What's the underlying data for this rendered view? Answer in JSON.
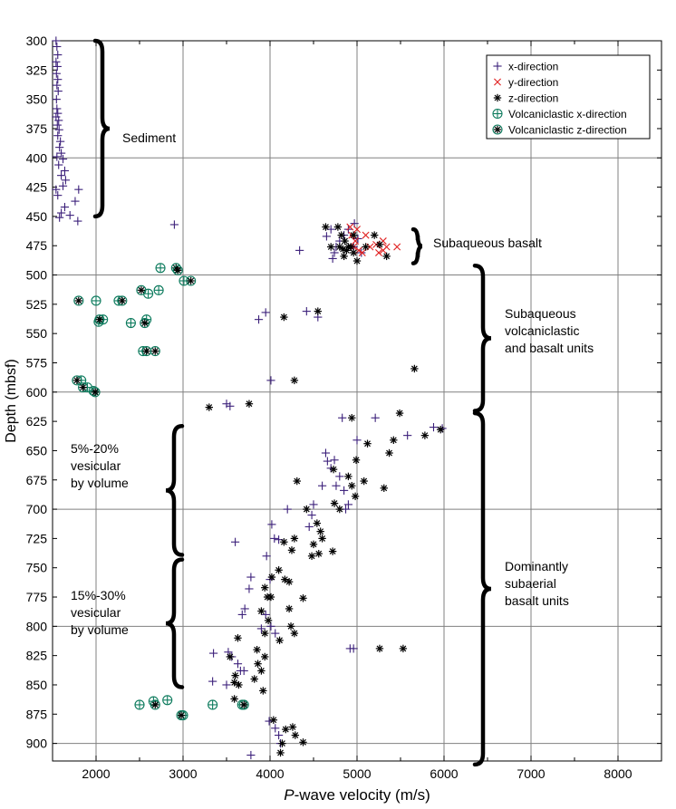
{
  "chart_data": {
    "type": "scatter",
    "xlabel_italic": "P",
    "xlabel_rest": "-wave velocity (m/s)",
    "ylabel": "Depth (mbsf)",
    "xlim": [
      1500,
      8500
    ],
    "ylim": [
      915,
      300
    ],
    "y_inverted": true,
    "grid": true,
    "legend_position": "top-right",
    "xticks": [
      2000,
      3000,
      4000,
      5000,
      6000,
      7000,
      8000
    ],
    "yticks": [
      300,
      325,
      350,
      375,
      400,
      425,
      450,
      475,
      500,
      525,
      550,
      575,
      600,
      625,
      650,
      675,
      700,
      725,
      750,
      775,
      800,
      825,
      850,
      875,
      900
    ],
    "series": [
      {
        "name": "x-direction",
        "marker": "plus",
        "color": "#3b1f7a",
        "points": [
          [
            1540,
            300
          ],
          [
            1550,
            305
          ],
          [
            1560,
            312
          ],
          [
            1540,
            318
          ],
          [
            1555,
            322
          ],
          [
            1545,
            328
          ],
          [
            1560,
            333
          ],
          [
            1550,
            338
          ],
          [
            1565,
            343
          ],
          [
            1545,
            350
          ],
          [
            1550,
            358
          ],
          [
            1560,
            362
          ],
          [
            1540,
            365
          ],
          [
            1570,
            368
          ],
          [
            1555,
            372
          ],
          [
            1575,
            376
          ],
          [
            1560,
            381
          ],
          [
            1590,
            386
          ],
          [
            1580,
            391
          ],
          [
            1600,
            396
          ],
          [
            1550,
            399
          ],
          [
            1620,
            401
          ],
          [
            1570,
            406
          ],
          [
            1640,
            411
          ],
          [
            1600,
            415
          ],
          [
            1650,
            419
          ],
          [
            1620,
            424
          ],
          [
            1540,
            427
          ],
          [
            1560,
            432
          ],
          [
            1800,
            427
          ],
          [
            1760,
            437
          ],
          [
            1640,
            442
          ],
          [
            1600,
            447
          ],
          [
            1700,
            449
          ],
          [
            1790,
            454
          ],
          [
            1580,
            451
          ],
          [
            2900,
            457
          ],
          [
            4340,
            479
          ],
          [
            4650,
            467
          ],
          [
            4700,
            461
          ],
          [
            4720,
            486
          ],
          [
            4740,
            481
          ],
          [
            4760,
            476
          ],
          [
            4800,
            471
          ],
          [
            4850,
            466
          ],
          [
            4900,
            461
          ],
          [
            4960,
            476
          ],
          [
            5010,
            469
          ],
          [
            5050,
            481
          ],
          [
            4970,
            456
          ],
          [
            4550,
            536
          ],
          [
            4420,
            531
          ],
          [
            3870,
            538
          ],
          [
            3950,
            532
          ],
          [
            4010,
            590
          ],
          [
            3500,
            610
          ],
          [
            3540,
            612
          ],
          [
            5210,
            622
          ],
          [
            5000,
            641
          ],
          [
            5580,
            637
          ],
          [
            5980,
            631
          ],
          [
            5880,
            630
          ],
          [
            4830,
            622
          ],
          [
            4640,
            652
          ],
          [
            4660,
            659
          ],
          [
            4700,
            665
          ],
          [
            4740,
            658
          ],
          [
            4760,
            680
          ],
          [
            4800,
            672
          ],
          [
            4850,
            684
          ],
          [
            4600,
            680
          ],
          [
            4870,
            700
          ],
          [
            4900,
            696
          ],
          [
            4500,
            696
          ],
          [
            4480,
            705
          ],
          [
            4450,
            715
          ],
          [
            4200,
            700
          ],
          [
            4020,
            713
          ],
          [
            4050,
            725
          ],
          [
            4100,
            726
          ],
          [
            3600,
            728
          ],
          [
            3960,
            740
          ],
          [
            4000,
            760
          ],
          [
            3780,
            758
          ],
          [
            3760,
            768
          ],
          [
            3710,
            785
          ],
          [
            3680,
            790
          ],
          [
            3950,
            790
          ],
          [
            4010,
            800
          ],
          [
            4060,
            806
          ],
          [
            3900,
            802
          ],
          [
            3520,
            822
          ],
          [
            3560,
            826
          ],
          [
            3630,
            832
          ],
          [
            3660,
            838
          ],
          [
            3700,
            838
          ],
          [
            3350,
            823
          ],
          [
            3340,
            847
          ],
          [
            3500,
            850
          ],
          [
            4960,
            819
          ],
          [
            4920,
            819
          ],
          [
            3990,
            881
          ],
          [
            4060,
            887
          ],
          [
            4100,
            893
          ],
          [
            4120,
            900
          ],
          [
            3780,
            910
          ]
        ]
      },
      {
        "name": "y-direction",
        "marker": "x",
        "color": "#e02020",
        "points": [
          [
            4920,
            459
          ],
          [
            5000,
            461
          ],
          [
            5100,
            466
          ],
          [
            4980,
            471
          ],
          [
            4960,
            476
          ],
          [
            5020,
            479
          ],
          [
            5150,
            476
          ],
          [
            5220,
            474
          ],
          [
            5300,
            471
          ],
          [
            5340,
            476
          ],
          [
            5460,
            476
          ],
          [
            5060,
            481
          ],
          [
            5250,
            481
          ],
          [
            5300,
            479
          ],
          [
            4940,
            466
          ]
        ]
      },
      {
        "name": "z-direction",
        "marker": "asterisk",
        "color": "#000000",
        "points": [
          [
            4640,
            459
          ],
          [
            4780,
            459
          ],
          [
            4820,
            466
          ],
          [
            4860,
            471
          ],
          [
            4900,
            476
          ],
          [
            4960,
            481
          ],
          [
            5100,
            476
          ],
          [
            5200,
            466
          ],
          [
            5260,
            474
          ],
          [
            5340,
            484
          ],
          [
            5000,
            488
          ],
          [
            4880,
            479
          ],
          [
            4840,
            478
          ],
          [
            4700,
            476
          ],
          [
            4550,
            531
          ],
          [
            4160,
            536
          ],
          [
            5660,
            580
          ],
          [
            4280,
            590
          ],
          [
            4800,
            476
          ],
          [
            4850,
            484
          ],
          [
            4930,
            476
          ],
          [
            4960,
            466
          ],
          [
            3300,
            613
          ],
          [
            3760,
            610
          ],
          [
            4940,
            622
          ],
          [
            5490,
            618
          ],
          [
            5420,
            641
          ],
          [
            5370,
            652
          ],
          [
            5120,
            644
          ],
          [
            4990,
            658
          ],
          [
            5780,
            637
          ],
          [
            5960,
            632
          ],
          [
            4900,
            672
          ],
          [
            4940,
            680
          ],
          [
            5080,
            676
          ],
          [
            4730,
            666
          ],
          [
            4310,
            676
          ],
          [
            5310,
            682
          ],
          [
            4740,
            695
          ],
          [
            4980,
            689
          ],
          [
            4800,
            700
          ],
          [
            4420,
            700
          ],
          [
            4540,
            712
          ],
          [
            4580,
            719
          ],
          [
            4600,
            725
          ],
          [
            4500,
            730
          ],
          [
            4560,
            738
          ],
          [
            4720,
            736
          ],
          [
            4480,
            740
          ],
          [
            4280,
            725
          ],
          [
            4250,
            735
          ],
          [
            4160,
            728
          ],
          [
            4020,
            758
          ],
          [
            4100,
            752
          ],
          [
            4170,
            760
          ],
          [
            4220,
            762
          ],
          [
            3940,
            767
          ],
          [
            3970,
            775
          ],
          [
            4010,
            775
          ],
          [
            4380,
            776
          ],
          [
            4220,
            785
          ],
          [
            3900,
            787
          ],
          [
            3980,
            795
          ],
          [
            4240,
            800
          ],
          [
            4280,
            806
          ],
          [
            4110,
            812
          ],
          [
            3940,
            806
          ],
          [
            3630,
            810
          ],
          [
            3850,
            820
          ],
          [
            3940,
            826
          ],
          [
            3860,
            832
          ],
          [
            3900,
            838
          ],
          [
            3820,
            845
          ],
          [
            3600,
            842
          ],
          [
            3540,
            826
          ],
          [
            3590,
            848
          ],
          [
            3640,
            850
          ],
          [
            3590,
            862
          ],
          [
            3920,
            855
          ],
          [
            5260,
            819
          ],
          [
            5530,
            819
          ],
          [
            4040,
            880
          ],
          [
            4180,
            888
          ],
          [
            4260,
            886
          ],
          [
            4290,
            893
          ],
          [
            4380,
            899
          ],
          [
            4140,
            900
          ],
          [
            4120,
            908
          ]
        ]
      },
      {
        "name": "Volcaniclastic x-direction",
        "marker": "circle-plus",
        "color": "#0b7a5c",
        "points": [
          [
            2740,
            494
          ],
          [
            3010,
            505
          ],
          [
            2720,
            513
          ],
          [
            2600,
            516
          ],
          [
            2260,
            522
          ],
          [
            2000,
            522
          ],
          [
            2580,
            538
          ],
          [
            2080,
            538
          ],
          [
            2400,
            541
          ],
          [
            2030,
            540
          ],
          [
            2540,
            565
          ],
          [
            1830,
            590
          ],
          [
            1900,
            596
          ],
          [
            1970,
            599
          ],
          [
            2660,
            864
          ],
          [
            2820,
            863
          ],
          [
            2500,
            867
          ],
          [
            3000,
            876
          ],
          [
            3340,
            867
          ],
          [
            3680,
            867
          ]
        ]
      },
      {
        "name": "Volcaniclastic z-direction",
        "marker": "circle-asterisk",
        "color": "#0b7a5c",
        "points": [
          [
            2920,
            494
          ],
          [
            3090,
            505
          ],
          [
            2520,
            513
          ],
          [
            2300,
            522
          ],
          [
            1800,
            522
          ],
          [
            2560,
            541
          ],
          [
            2040,
            538
          ],
          [
            2580,
            565
          ],
          [
            2680,
            565
          ],
          [
            1780,
            590
          ],
          [
            1850,
            596
          ],
          [
            1990,
            600
          ],
          [
            2940,
            496
          ],
          [
            2680,
            867
          ],
          [
            2980,
            876
          ],
          [
            3700,
            867
          ]
        ]
      }
    ],
    "annotations": [
      {
        "text": [
          "Sediment"
        ],
        "anchor_x": 2180,
        "anchor_y": 375
      },
      {
        "text": [
          "Subaqueous basalt"
        ],
        "anchor_x": 4850,
        "anchor_y": 475,
        "offset": "right-of-5000"
      },
      {
        "text": [
          "Subaqueous",
          "volcaniclastic",
          "and basalt units"
        ],
        "anchor_x": 6650,
        "anchor_y": 543
      },
      {
        "text": [
          "5%-20%",
          "vesicular",
          "by volume"
        ],
        "anchor_x": 1700,
        "anchor_y": 668
      },
      {
        "text": [
          "15%-30%",
          "vesicular",
          "by volume"
        ],
        "anchor_x": 1700,
        "anchor_y": 786
      },
      {
        "text": [
          "Dominantly",
          "subaerial",
          "basalt units"
        ],
        "anchor_x": 6650,
        "anchor_y": 777
      }
    ]
  }
}
